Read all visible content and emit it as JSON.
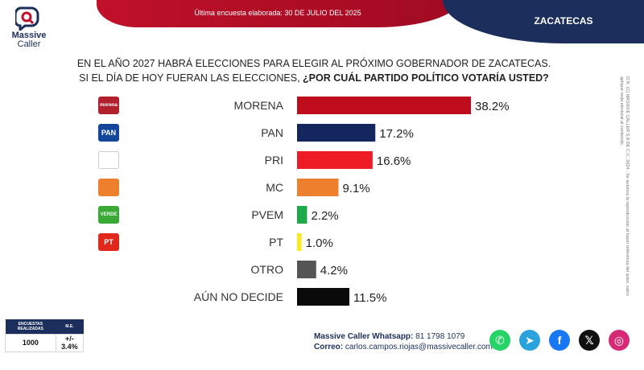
{
  "header": {
    "banner_text": "Última encuesta elaborada: 30 DE JULIO DEL 2025",
    "state": "ZACATECAS"
  },
  "logo": {
    "line1": "Massive",
    "line2": "Caller"
  },
  "question": {
    "line1": "EN EL AÑO 2027 HABRÁ ELECCIONES PARA ELEGIR AL PRÓXIMO GOBERNADOR DE ZACATECAS.",
    "line2_plain": "SI EL DÍA DE HOY FUERAN LAS ELECCIONES, ",
    "line2_bold": "¿POR CUÁL PARTIDO POLÍTICO VOTARÍA USTED?"
  },
  "chart_data": {
    "type": "bar",
    "orientation": "horizontal",
    "categories": [
      "MORENA",
      "PAN",
      "PRI",
      "MC",
      "PVEM",
      "PT",
      "OTRO",
      "AÚN NO DECIDE"
    ],
    "values": [
      38.2,
      17.2,
      16.6,
      9.1,
      2.2,
      1.0,
      4.2,
      11.5
    ],
    "value_labels": [
      "38.2%",
      "17.2%",
      "16.6%",
      "9.1%",
      "2.2%",
      "1.0%",
      "4.2%",
      "11.5%"
    ],
    "colors": [
      "#c00d1e",
      "#13275e",
      "#ee1c24",
      "#ee7f2d",
      "#1faa4a",
      "#f7ea1e",
      "#555555",
      "#0a0a0a"
    ],
    "party_icons": [
      {
        "name": "morena-logo-icon",
        "text": "morena",
        "bg": "#b3202d"
      },
      {
        "name": "pan-logo-icon",
        "text": "PAN",
        "bg": "#13479c"
      },
      {
        "name": "pri-logo-icon",
        "text": "",
        "bg": "#ffffff"
      },
      {
        "name": "mc-logo-icon",
        "text": "",
        "bg": "#ee7f2d"
      },
      {
        "name": "pvem-logo-icon",
        "text": "VERDE",
        "bg": "#3aa935"
      },
      {
        "name": "pt-logo-icon",
        "text": "PT",
        "bg": "#e0281c"
      }
    ],
    "xlim": [
      0,
      40
    ],
    "grid": false,
    "legend": "none"
  },
  "side_note": "D.R. (C) MASSIVE CALLER S.A DE C.V., 2024 · Se autoriza la reproducción al hacer referencia del autor, salvo aplique veda electoral al contenido.",
  "info": {
    "headers": [
      "ENCUESTAS REALIZADAS",
      "M.E."
    ],
    "values": [
      "1000",
      "+/- 3.4%"
    ]
  },
  "contact": {
    "whatsapp_label": "Massive Caller Whatsapp:",
    "whatsapp_number": "81 1798 1079",
    "email_label": "Correo:",
    "email": "carlos.campos.riojas@massivecaller.com"
  },
  "socials": [
    {
      "name": "whatsapp-icon",
      "glyph": "✆",
      "color": "#25d366"
    },
    {
      "name": "telegram-icon",
      "glyph": "➤",
      "color": "#2aa3dd"
    },
    {
      "name": "facebook-icon",
      "glyph": "f",
      "color": "#1877f2"
    },
    {
      "name": "x-icon",
      "glyph": "𝕏",
      "color": "#111111"
    },
    {
      "name": "instagram-icon",
      "glyph": "◎",
      "color": "#d62976"
    }
  ]
}
